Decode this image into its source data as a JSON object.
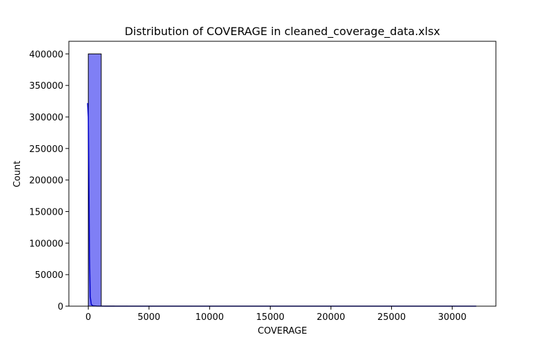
{
  "chart_data": {
    "type": "bar",
    "title": "Distribution of COVERAGE in cleaned_coverage_data.xlsx",
    "xlabel": "COVERAGE",
    "ylabel": "Count",
    "xlim": [
      -1600,
      33600
    ],
    "ylim": [
      0,
      420000
    ],
    "xticks": [
      0,
      5000,
      10000,
      15000,
      20000,
      25000,
      30000
    ],
    "yticks": [
      0,
      50000,
      100000,
      150000,
      200000,
      250000,
      300000,
      350000,
      400000
    ],
    "grid": false,
    "bins": [
      {
        "x0": 0,
        "x1": 1066,
        "count": 400000
      },
      {
        "x0": 1066,
        "x1": 2132,
        "count": 150
      },
      {
        "x0": 2132,
        "x1": 3198,
        "count": 60
      },
      {
        "x0": 3198,
        "x1": 4264,
        "count": 30
      },
      {
        "x0": 4264,
        "x1": 5330,
        "count": 20
      },
      {
        "x0": 5330,
        "x1": 6396,
        "count": 15
      },
      {
        "x0": 6396,
        "x1": 7462,
        "count": 10
      },
      {
        "x0": 7462,
        "x1": 8528,
        "count": 8
      },
      {
        "x0": 8528,
        "x1": 9594,
        "count": 6
      },
      {
        "x0": 9594,
        "x1": 10660,
        "count": 5
      },
      {
        "x0": 10660,
        "x1": 11726,
        "count": 4
      },
      {
        "x0": 11726,
        "x1": 12792,
        "count": 3
      },
      {
        "x0": 12792,
        "x1": 13858,
        "count": 3
      },
      {
        "x0": 13858,
        "x1": 14924,
        "count": 2
      },
      {
        "x0": 14924,
        "x1": 15990,
        "count": 2
      },
      {
        "x0": 15990,
        "x1": 17056,
        "count": 2
      },
      {
        "x0": 17056,
        "x1": 18122,
        "count": 1
      },
      {
        "x0": 18122,
        "x1": 19188,
        "count": 1
      },
      {
        "x0": 19188,
        "x1": 20254,
        "count": 1
      },
      {
        "x0": 20254,
        "x1": 21320,
        "count": 1
      },
      {
        "x0": 21320,
        "x1": 22386,
        "count": 1
      },
      {
        "x0": 22386,
        "x1": 23452,
        "count": 1
      },
      {
        "x0": 23452,
        "x1": 24518,
        "count": 1
      },
      {
        "x0": 24518,
        "x1": 25584,
        "count": 1
      },
      {
        "x0": 25584,
        "x1": 26650,
        "count": 1
      },
      {
        "x0": 26650,
        "x1": 27716,
        "count": 1
      },
      {
        "x0": 27716,
        "x1": 28782,
        "count": 1
      },
      {
        "x0": 28782,
        "x1": 29848,
        "count": 1
      },
      {
        "x0": 29848,
        "x1": 30914,
        "count": 1
      },
      {
        "x0": 30914,
        "x1": 31980,
        "count": 1
      }
    ],
    "kde": {
      "x": [
        -60,
        0,
        40,
        100,
        160,
        250,
        400,
        700,
        1500,
        5000,
        10000,
        20000,
        31980
      ],
      "y": [
        322000,
        300000,
        220000,
        80000,
        15000,
        2500,
        600,
        150,
        40,
        10,
        4,
        2,
        1
      ]
    },
    "colors": {
      "bar_fill": "#7f7ff5",
      "bar_edge": "#000000",
      "kde_line": "#0000cc"
    }
  }
}
